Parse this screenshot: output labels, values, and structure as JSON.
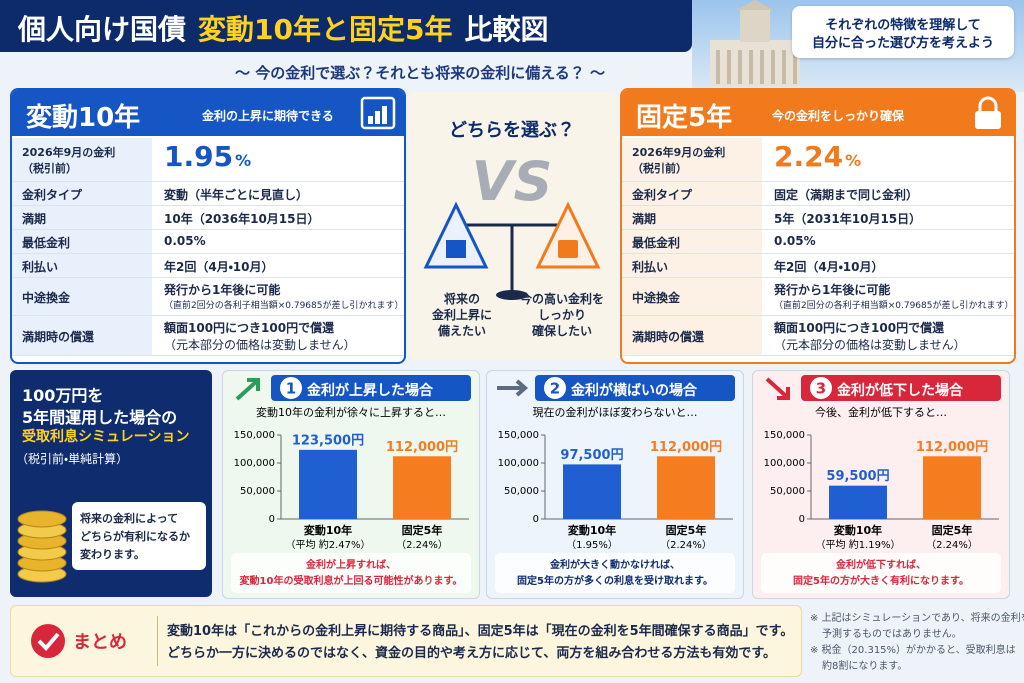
{
  "header": {
    "title_part1": "個人向け国債",
    "title_part2": "変動10年と固定5年",
    "title_part3": "比較図",
    "subtitle": "〜 今の金利で選ぶ？それとも将来の金利に備える？ 〜",
    "note": [
      "それぞれの特徴を理解して",
      "自分に合った選び方を考えよう"
    ]
  },
  "products": [
    {
      "name": "変動10年",
      "tagline": "金利の上昇に期待できる",
      "color": "#1656c4",
      "light_color": "#e8f0fb",
      "rate_label": [
        "2026年9月の金利",
        "（税引前）"
      ],
      "rate": "1.95",
      "rate_unit": "%",
      "rows": [
        {
          "label": "金利タイプ",
          "value": [
            "変動（半年ごとに見直し）"
          ]
        },
        {
          "label": "満期",
          "value": [
            "10年（2036年10月15日）"
          ]
        },
        {
          "label": "最低金利",
          "value": [
            "0.05%"
          ]
        },
        {
          "label": "利払い",
          "value": [
            "年2回（4月・10月）"
          ]
        },
        {
          "label": "中途換金",
          "value": [
            "発行から1年後に可能",
            "（直前2回分の各利子相当額×0.79685が差し引かれます）"
          ]
        },
        {
          "label": "満期時の償還",
          "value": [
            "額面100円につき100円で償還",
            "（元本部分の価格は変動しません）"
          ]
        }
      ]
    },
    {
      "name": "固定5年",
      "tagline": "今の金利をしっかり確保",
      "color": "#f07a1c",
      "light_color": "#fdf0e4",
      "rate_label": [
        "2026年9月の金利",
        "（税引前）"
      ],
      "rate": "2.24",
      "rate_unit": "%",
      "rows": [
        {
          "label": "金利タイプ",
          "value": [
            "固定（満期まで同じ金利）"
          ]
        },
        {
          "label": "満期",
          "value": [
            "5年（2031年10月15日）"
          ]
        },
        {
          "label": "最低金利",
          "value": [
            "0.05%"
          ]
        },
        {
          "label": "利払い",
          "value": [
            "年2回（4月・10月）"
          ]
        },
        {
          "label": "中途換金",
          "value": [
            "発行から1年後に可能",
            "（直前2回分の各利子相当額×0.79685が差し引かれます）"
          ]
        },
        {
          "label": "満期時の償還",
          "value": [
            "額面100円につき100円で償還",
            "（元本部分の価格は変動しません）"
          ]
        }
      ]
    }
  ],
  "compare": {
    "question": "どちらを選ぶ？",
    "vs": "VS",
    "left": [
      "将来の",
      "金利上昇に",
      "備えたい"
    ],
    "right": [
      "今の高い金利を",
      "しっかり",
      "確保したい"
    ]
  },
  "simulation": {
    "title": [
      "100万円を",
      "5年間運用した場合の"
    ],
    "highlight": "受取利息シミュレーション",
    "note": "（税引前・単純計算）",
    "coin_text": [
      "将来の金利によって",
      "どちらが有利になるか",
      "変わります。"
    ]
  },
  "chart_data": [
    {
      "type": "bar",
      "number": "1",
      "title": "金利が上昇した場合",
      "subtitle": "変動10年の金利が徐々に上昇すると…",
      "categories": [
        "変動10年",
        "固定5年"
      ],
      "category_notes": [
        "（平均 約2.47%）",
        "（2.24%）"
      ],
      "values": [
        123500,
        112000
      ],
      "value_labels": [
        "123,500円",
        "112,000円"
      ],
      "colors": [
        "#1f5fd1",
        "#f57c1f"
      ],
      "header_color": "#1656c4",
      "panel_color": "#eef8ef",
      "note_color": "#d8263a",
      "ylim": [
        0,
        150000
      ],
      "yticks": [
        0,
        {
          "value": 50000,
          "label": "50,000"
        },
        {
          "value": 100000,
          "label": "100,000"
        },
        {
          "value": 150000,
          "label": "150,000"
        }
      ],
      "note": [
        "金利が上昇すれば、",
        "変動10年の受取利息が上回る可能性があります。"
      ]
    },
    {
      "type": "bar",
      "number": "2",
      "title": "金利が横ばいの場合",
      "subtitle": "現在の金利がほぼ変わらないと…",
      "categories": [
        "変動10年",
        "固定5年"
      ],
      "category_notes": [
        "（1.95%）",
        "（2.24%）"
      ],
      "values": [
        97500,
        112000
      ],
      "value_labels": [
        "97,500円",
        "112,000円"
      ],
      "colors": [
        "#1f5fd1",
        "#f57c1f"
      ],
      "header_color": "#1656c4",
      "panel_color": "#edf4fc",
      "note_color": "#0f2d6e",
      "ylim": [
        0,
        150000
      ],
      "yticks": [
        0,
        {
          "value": 50000,
          "label": "50,000"
        },
        {
          "value": 100000,
          "label": "100,000"
        },
        {
          "value": 150000,
          "label": "150,000"
        }
      ],
      "note": [
        "金利が大きく動かなければ、",
        "固定5年の方が多くの利息を受け取れます。"
      ]
    },
    {
      "type": "bar",
      "number": "3",
      "title": "金利が低下した場合",
      "subtitle": "今後、金利が低下すると…",
      "categories": [
        "変動10年",
        "固定5年"
      ],
      "category_notes": [
        "（平均 約1.19%）",
        "（2.24%）"
      ],
      "values": [
        59500,
        112000
      ],
      "value_labels": [
        "59,500円",
        "112,000円"
      ],
      "colors": [
        "#1f5fd1",
        "#f57c1f"
      ],
      "header_color": "#d8263a",
      "panel_color": "#fdeff0",
      "note_color": "#d8263a",
      "ylim": [
        0,
        150000
      ],
      "yticks": [
        0,
        {
          "value": 50000,
          "label": "50,000"
        },
        {
          "value": 100000,
          "label": "100,000"
        },
        {
          "value": 150000,
          "label": "150,000"
        }
      ],
      "note": [
        "金利が低下すれば、",
        "固定5年の方が大きく有利になります。"
      ]
    }
  ],
  "summary": {
    "label": "まとめ",
    "text": [
      "変動10年は「これからの金利上昇に期待する商品」、固定5年は「現在の金利を5年間確保する商品」です。",
      "どちらか一方に決めるのではなく、資金の目的や考え方に応じて、両方を組み合わせる方法も有効です。"
    ],
    "footnotes": [
      "※ 上記はシミュレーションであり、将来の金利を",
      "予測するものではありません。",
      "※ 税金（20.315%）がかかると、受取利息は",
      "約8割になります。"
    ]
  }
}
